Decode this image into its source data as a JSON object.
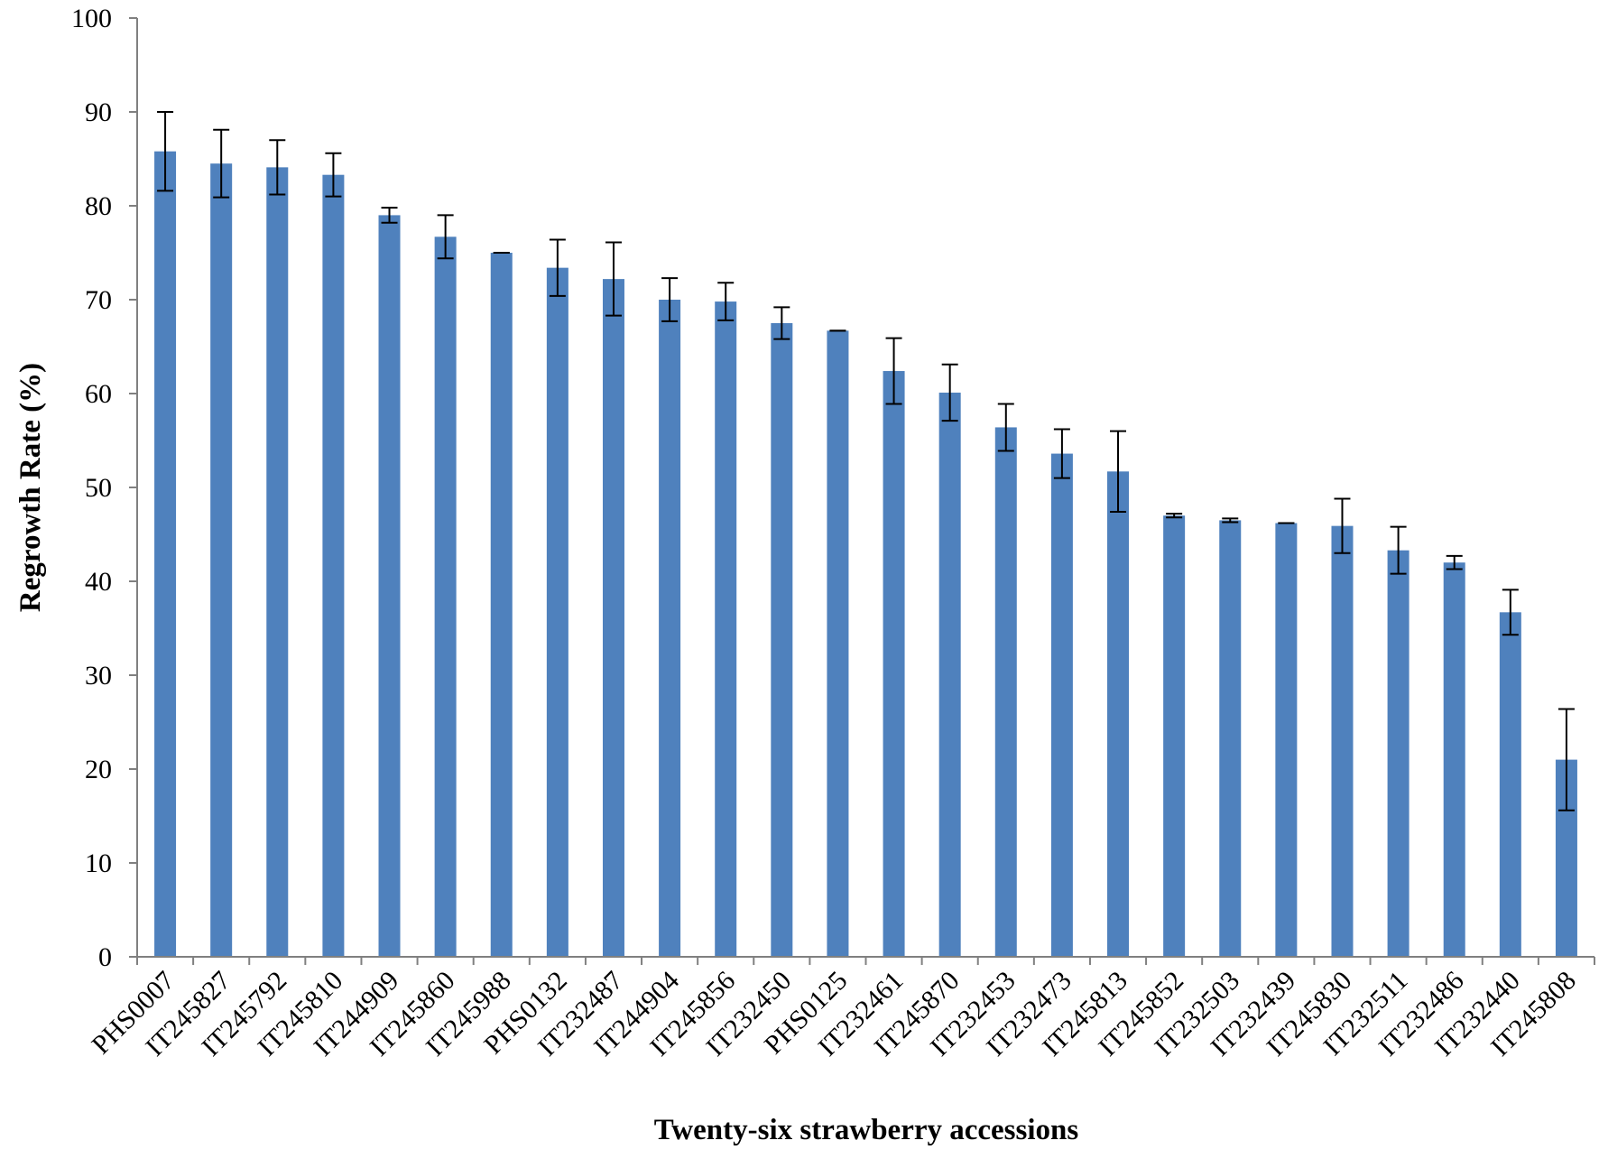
{
  "chart_data": {
    "type": "bar",
    "title": "",
    "xlabel": "Twenty-six strawberry accessions",
    "ylabel": "Regrowth Rate (%)",
    "ylim": [
      0,
      100
    ],
    "yticks": [
      0,
      10,
      20,
      30,
      40,
      50,
      60,
      70,
      80,
      90,
      100
    ],
    "grid": false,
    "legend": "none",
    "bar_color": "#4f81bd",
    "categories": [
      "PHS0007",
      "IT245827",
      "IT245792",
      "IT245810",
      "IT244909",
      "IT245860",
      "IT245988",
      "PHS0132",
      "IT232487",
      "IT244904",
      "IT245856",
      "IT232450",
      "PHS0125",
      "IT232461",
      "IT245870",
      "IT232453",
      "IT232473",
      "IT245813",
      "IT245852",
      "IT232503",
      "IT232439",
      "IT245830",
      "IT232511",
      "IT232486",
      "IT232440",
      "IT245808"
    ],
    "series": [
      {
        "values": [
          85.8,
          84.5,
          84.1,
          83.3,
          79.0,
          76.7,
          75.0,
          73.4,
          72.2,
          70.0,
          69.8,
          67.5,
          66.7,
          62.4,
          60.1,
          56.4,
          53.6,
          51.7,
          47.0,
          46.5,
          46.2,
          45.9,
          43.3,
          42.0,
          36.7,
          21.0
        ],
        "errors": [
          4.2,
          3.6,
          2.9,
          2.3,
          0.8,
          2.3,
          0.0,
          3.0,
          3.9,
          2.3,
          2.0,
          1.7,
          0.0,
          3.5,
          3.0,
          2.5,
          2.6,
          4.3,
          0.2,
          0.2,
          0.0,
          2.9,
          2.5,
          0.7,
          2.4,
          5.4
        ]
      }
    ]
  }
}
